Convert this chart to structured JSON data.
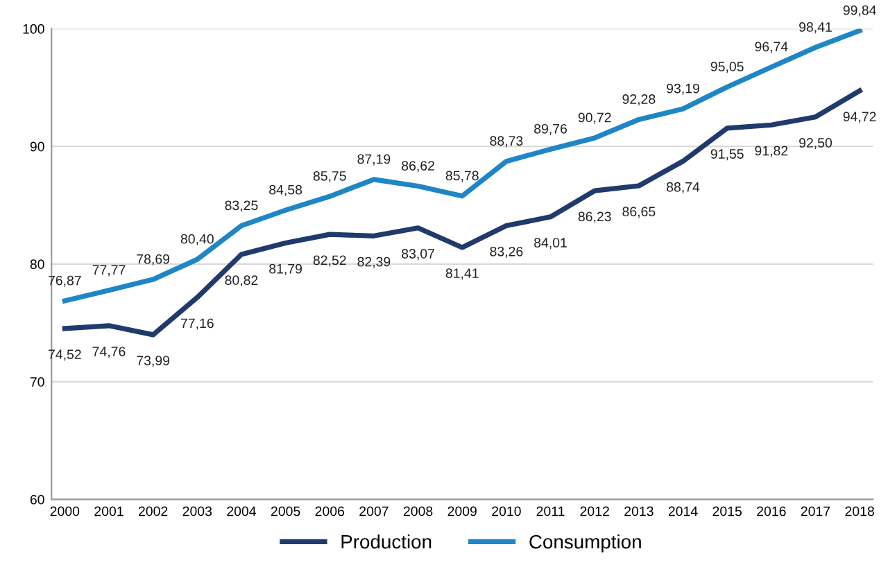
{
  "chart_data": {
    "type": "line",
    "categories": [
      "2000",
      "2001",
      "2002",
      "2003",
      "2004",
      "2005",
      "2006",
      "2007",
      "2008",
      "2009",
      "2010",
      "2011",
      "2012",
      "2013",
      "2014",
      "2015",
      "2016",
      "2017",
      "2018"
    ],
    "series": [
      {
        "name": "Production",
        "color": "#1f3a6b",
        "values": [
          74.52,
          74.76,
          73.99,
          77.16,
          80.82,
          81.79,
          82.52,
          82.39,
          83.07,
          81.41,
          83.26,
          84.01,
          86.23,
          86.65,
          88.74,
          91.55,
          91.82,
          92.5,
          94.72
        ],
        "value_labels": [
          "74,52",
          "74,76",
          "73,99",
          "77,16",
          "80,82",
          "81,79",
          "82,52",
          "82,39",
          "83,07",
          "81,41",
          "83,26",
          "84,01",
          "86,23",
          "86,65",
          "88,74",
          "91,55",
          "91,82",
          "92,50",
          "94,72"
        ]
      },
      {
        "name": "Consumption",
        "color": "#1f86c6",
        "values": [
          76.87,
          77.77,
          78.69,
          80.4,
          83.25,
          84.58,
          85.75,
          87.19,
          86.62,
          85.78,
          88.73,
          89.76,
          90.72,
          92.28,
          93.19,
          95.05,
          96.74,
          98.41,
          99.84
        ],
        "value_labels": [
          "76,87",
          "77,77",
          "78,69",
          "80,40",
          "83,25",
          "84,58",
          "85,75",
          "87,19",
          "86,62",
          "85,78",
          "88,73",
          "89,76",
          "90,72",
          "92,28",
          "93,19",
          "95,05",
          "96,74",
          "98,41",
          "99,84"
        ]
      }
    ],
    "ylim": [
      60,
      100
    ],
    "yticks": [
      60,
      70,
      80,
      90,
      100
    ],
    "grid": "y",
    "legend": "bottom",
    "marker": "none",
    "line_style": "solid"
  }
}
